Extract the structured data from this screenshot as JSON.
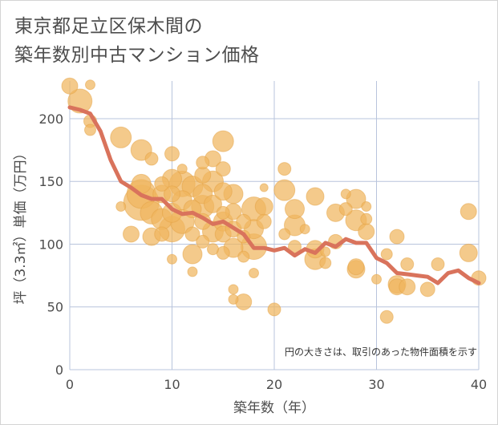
{
  "title": {
    "line1": "東京都足立区保木間の",
    "line2": "築年数別中古マンション価格"
  },
  "colors": {
    "bubble": "#f0b55e",
    "bubble_stroke": "#e3a243",
    "line": "#d9735c",
    "grid": "#b8c4dc",
    "plot_bg": "#ffffff"
  },
  "chart_data": {
    "type": "scatter",
    "xlabel": "築年数（年）",
    "ylabel": "坪（3.3㎡）単価（万円）",
    "xlim": [
      0,
      40
    ],
    "ylim": [
      0,
      230
    ],
    "x_ticks": [
      0,
      10,
      20,
      30,
      40
    ],
    "y_ticks": [
      0,
      50,
      100,
      150,
      200
    ],
    "note": "円の大きさは、取引のあった物件面積を示す",
    "grid": true,
    "series": [
      {
        "type": "bubble",
        "points": [
          [
            0,
            226,
            10
          ],
          [
            1,
            214,
            15
          ],
          [
            2,
            227,
            6
          ],
          [
            2,
            198,
            8
          ],
          [
            2,
            191,
            7
          ],
          [
            5,
            185,
            13
          ],
          [
            5,
            130,
            6
          ],
          [
            6,
            108,
            10
          ],
          [
            7,
            175,
            13
          ],
          [
            7,
            148,
            12
          ],
          [
            7,
            140,
            18
          ],
          [
            7,
            133,
            22
          ],
          [
            8,
            168,
            8
          ],
          [
            8,
            125,
            14
          ],
          [
            8,
            106,
            11
          ],
          [
            9,
            148,
            9
          ],
          [
            9,
            140,
            11
          ],
          [
            9,
            120,
            13
          ],
          [
            9,
            108,
            9
          ],
          [
            10,
            172,
            9
          ],
          [
            10,
            152,
            12
          ],
          [
            10,
            140,
            10
          ],
          [
            10,
            125,
            12
          ],
          [
            10,
            112,
            16
          ],
          [
            10,
            88,
            6
          ],
          [
            11,
            160,
            6
          ],
          [
            11,
            148,
            16
          ],
          [
            11,
            135,
            12
          ],
          [
            11,
            118,
            15
          ],
          [
            12,
            146,
            13
          ],
          [
            12,
            128,
            11
          ],
          [
            12,
            108,
            9
          ],
          [
            12,
            92,
            12
          ],
          [
            12,
            78,
            6
          ],
          [
            13,
            165,
            8
          ],
          [
            13,
            155,
            10
          ],
          [
            13,
            140,
            12
          ],
          [
            13,
            130,
            14
          ],
          [
            13,
            118,
            10
          ],
          [
            13,
            102,
            8
          ],
          [
            14,
            168,
            10
          ],
          [
            14,
            150,
            13
          ],
          [
            14,
            132,
            11
          ],
          [
            14,
            110,
            13
          ],
          [
            14,
            96,
            7
          ],
          [
            15,
            182,
            13
          ],
          [
            15,
            160,
            9
          ],
          [
            15,
            142,
            11
          ],
          [
            15,
            125,
            8
          ],
          [
            15,
            118,
            12
          ],
          [
            15,
            108,
            10
          ],
          [
            15,
            93,
            8
          ],
          [
            16,
            140,
            12
          ],
          [
            16,
            126,
            10
          ],
          [
            16,
            112,
            10
          ],
          [
            16,
            97,
            12
          ],
          [
            16,
            64,
            6
          ],
          [
            16,
            56,
            6
          ],
          [
            17,
            118,
            9
          ],
          [
            17,
            106,
            8
          ],
          [
            17,
            90,
            7
          ],
          [
            17,
            54,
            10
          ],
          [
            18,
            128,
            15
          ],
          [
            18,
            112,
            12
          ],
          [
            18,
            98,
            16
          ],
          [
            18,
            77,
            6
          ],
          [
            19,
            145,
            5
          ],
          [
            19,
            130,
            11
          ],
          [
            19,
            118,
            9
          ],
          [
            20,
            48,
            8
          ],
          [
            21,
            160,
            8
          ],
          [
            21,
            143,
            13
          ],
          [
            21,
            108,
            7
          ],
          [
            22,
            128,
            12
          ],
          [
            22,
            115,
            13
          ],
          [
            22,
            98,
            8
          ],
          [
            23,
            112,
            6
          ],
          [
            24,
            138,
            11
          ],
          [
            24,
            96,
            11
          ],
          [
            24,
            88,
            13
          ],
          [
            25,
            85,
            7
          ],
          [
            25,
            94,
            6
          ],
          [
            26,
            125,
            11
          ],
          [
            26,
            102,
            9
          ],
          [
            27,
            140,
            6
          ],
          [
            27,
            128,
            8
          ],
          [
            28,
            136,
            12
          ],
          [
            28,
            119,
            13
          ],
          [
            28,
            82,
            10
          ],
          [
            28,
            80,
            11
          ],
          [
            29,
            120,
            7
          ],
          [
            29,
            110,
            10
          ],
          [
            29,
            130,
            6
          ],
          [
            30,
            72,
            6
          ],
          [
            31,
            42,
            8
          ],
          [
            31,
            92,
            7
          ],
          [
            32,
            106,
            9
          ],
          [
            32,
            68,
            11
          ],
          [
            32,
            66,
            10
          ],
          [
            33,
            84,
            8
          ],
          [
            33,
            66,
            10
          ],
          [
            35,
            64,
            9
          ],
          [
            36,
            84,
            8
          ],
          [
            39,
            126,
            10
          ],
          [
            39,
            93,
            11
          ],
          [
            40,
            73,
            9
          ]
        ]
      },
      {
        "type": "line",
        "x": [
          0,
          1,
          2,
          3,
          4,
          5,
          6,
          7,
          8,
          9,
          10,
          11,
          12,
          13,
          14,
          15,
          16,
          17,
          18,
          19,
          20,
          21,
          22,
          23,
          24,
          25,
          26,
          27,
          28,
          29,
          30,
          31,
          32,
          33,
          34,
          35,
          36,
          37,
          38,
          39,
          40
        ],
        "y": [
          209,
          207,
          204,
          190,
          167,
          150,
          145,
          139,
          136,
          136,
          128,
          124,
          125,
          121,
          116,
          118,
          113,
          108,
          97,
          97,
          95,
          97,
          91,
          96,
          93,
          101,
          98,
          104,
          101,
          101,
          89,
          85,
          77,
          76,
          75,
          74,
          69,
          77,
          79,
          73,
          69
        ]
      }
    ]
  }
}
